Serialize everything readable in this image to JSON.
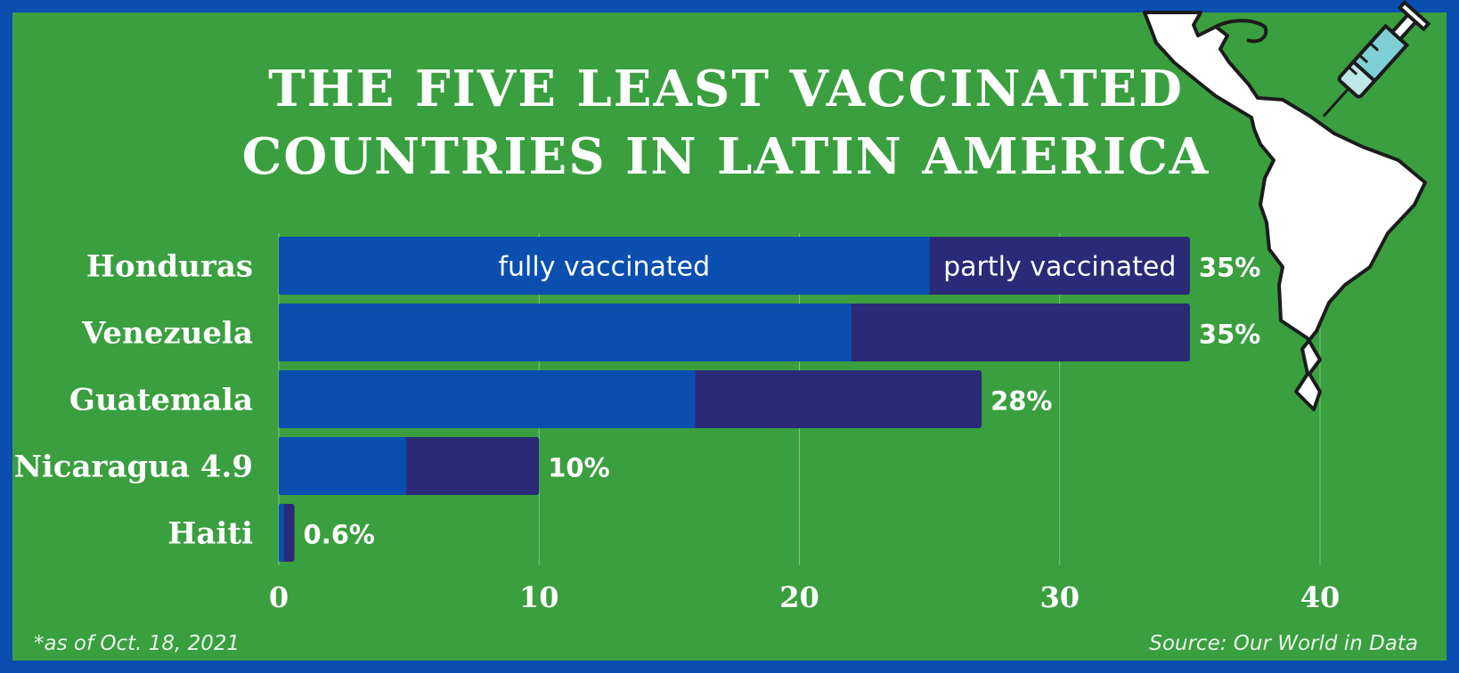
{
  "header": {
    "title_line1": "THE FIVE LEAST VACCINATED",
    "title_line2": "COUNTRIES IN LATIN AMERICA"
  },
  "footer": {
    "note": "*as of Oct. 18, 2021",
    "source": "Source: Our World in Data"
  },
  "colors": {
    "background": "#3a9f3f",
    "border": "#0a4fb0",
    "fully": "#0a4fb0",
    "partly": "#2a2a78"
  },
  "illustration": {
    "map": "latin-america-map",
    "icon": "syringe-icon"
  },
  "chart_data": {
    "type": "bar",
    "orientation": "horizontal",
    "stacked": true,
    "categories": [
      "Honduras",
      "Venezuela",
      "Guatemala",
      "Nicaragua 4.9",
      "Haiti"
    ],
    "series": [
      {
        "name": "fully vaccinated",
        "values": [
          25,
          22,
          16,
          4.9,
          0.2
        ]
      },
      {
        "name": "partly vaccinated",
        "values": [
          10,
          13,
          11,
          5.1,
          0.4
        ]
      }
    ],
    "total_labels": [
      "35%",
      "35%",
      "28%",
      "10%",
      "0.6%"
    ],
    "xlim": [
      0,
      40
    ],
    "xticks": [
      0,
      10,
      20,
      30,
      40
    ],
    "grid": true,
    "legend": "inside-first-bar"
  }
}
